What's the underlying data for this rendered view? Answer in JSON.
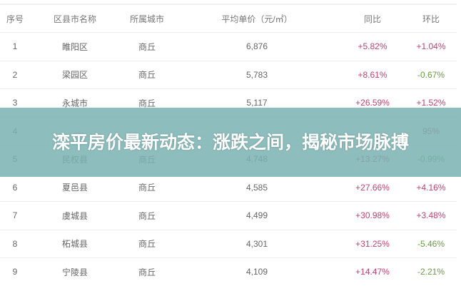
{
  "table": {
    "headers": [
      "序号",
      "区县市名称",
      "所属城市",
      "平均单价（元/㎡）",
      "同比",
      "环比"
    ],
    "rows": [
      [
        "1",
        "睢阳区",
        "商丘",
        "6,876",
        "+5.82%",
        "+1.04%"
      ],
      [
        "2",
        "梁园区",
        "商丘",
        "5,783",
        "+8.61%",
        "-0.67%"
      ],
      [
        "3",
        "永城市",
        "商丘",
        "5,117",
        "+26.59%",
        "+1.52%"
      ],
      [
        "4",
        "",
        "",
        "",
        "",
        "95%"
      ],
      [
        "5",
        "民权县",
        "商丘",
        "4,748",
        "+13.27%",
        "-0.99%"
      ],
      [
        "6",
        "夏邑县",
        "商丘",
        "4,585",
        "+27.66%",
        "+4.16%"
      ],
      [
        "7",
        "虞城县",
        "商丘",
        "4,499",
        "+30.98%",
        "+3.48%"
      ],
      [
        "8",
        "柘城县",
        "商丘",
        "4,301",
        "+31.25%",
        "-5.46%"
      ],
      [
        "9",
        "宁陵县",
        "商丘",
        "4,109",
        "+14.47%",
        "-2.21%"
      ]
    ]
  },
  "overlay": {
    "title": "滦平房价最新动态：涨跌之间，揭秘市场脉搏"
  },
  "colors": {
    "positive": "#c2416f",
    "negative": "#6c9a47",
    "overlay": "#7ab2b2"
  }
}
